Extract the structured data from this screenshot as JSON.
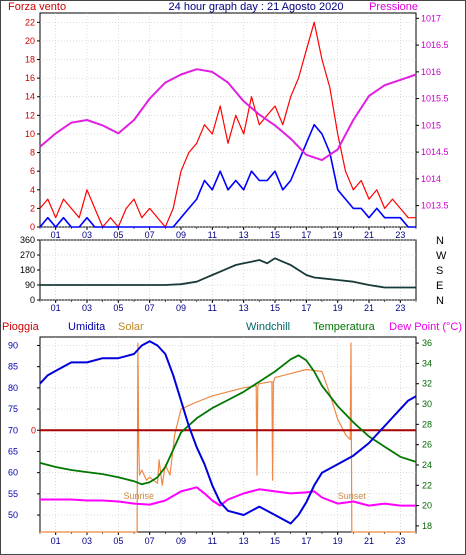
{
  "header": {
    "title": "24 hour graph day : 21 Agosto 2020",
    "left_label": "Forza vento",
    "right_label": "Pressione"
  },
  "bottom_header": {
    "labels": [
      "Pioggia",
      "Umidita",
      "Solar",
      "Windchill",
      "Temperatura",
      "Dew Point (°C)"
    ]
  },
  "colors": {
    "wind_gust": "#ff0000",
    "wind_avg": "#0000ff",
    "pressure": "#e020e0",
    "direction": "#1a3a3a",
    "humidity": "#0000dd",
    "temperature": "#007700",
    "dewpoint": "#ff00ff",
    "solar": "#ee8844",
    "rain": "#aa0000",
    "title": "#000080"
  },
  "chart_data": [
    {
      "type": "line",
      "name": "wind-pressure",
      "title": "24 hour graph day : 21 Agosto 2020",
      "x_ticks": [
        "01",
        "03",
        "05",
        "07",
        "09",
        "11",
        "13",
        "15",
        "17",
        "19",
        "21",
        "23"
      ],
      "y_left_label": "Forza vento",
      "y_left_ticks": [
        0,
        2,
        4,
        6,
        8,
        10,
        12,
        14,
        16,
        18,
        20,
        22
      ],
      "y_left_range": [
        0,
        23
      ],
      "y_right_label": "Pressione",
      "y_right_ticks": [
        1013.5,
        1014,
        1014.5,
        1015,
        1015.5,
        1016,
        1016.5,
        1017
      ],
      "y_right_range": [
        1013.1,
        1017.1
      ],
      "x_range": [
        0,
        24
      ],
      "series": [
        {
          "name": "Pressione",
          "axis": "right",
          "x": [
            0,
            1,
            2,
            3,
            4,
            5,
            6,
            7,
            8,
            9,
            10,
            11,
            12,
            13,
            14,
            15,
            16,
            17,
            18,
            19,
            20,
            21,
            22,
            23,
            24
          ],
          "y": [
            1014.6,
            1014.85,
            1015.05,
            1015.1,
            1015.0,
            1014.85,
            1015.1,
            1015.5,
            1015.8,
            1015.95,
            1016.05,
            1016.0,
            1015.8,
            1015.45,
            1015.2,
            1015.0,
            1014.75,
            1014.45,
            1014.35,
            1014.55,
            1015.1,
            1015.55,
            1015.75,
            1015.85,
            1015.95
          ]
        },
        {
          "name": "",
          "axis": "left",
          "style": "gust",
          "x": [
            0,
            0.5,
            1,
            1.5,
            2,
            2.5,
            3,
            3.5,
            4,
            4.5,
            5,
            5.5,
            6,
            6.5,
            7,
            7.5,
            8,
            8.5,
            9,
            9.5,
            10,
            10.5,
            11,
            11.5,
            12,
            12.5,
            13,
            13.5,
            14,
            14.5,
            15,
            15.5,
            16,
            16.5,
            17,
            17.5,
            18,
            18.5,
            19,
            19.5,
            20,
            20.5,
            21,
            21.5,
            22,
            22.5,
            23,
            23.5,
            24
          ],
          "y": [
            2,
            3,
            1,
            3,
            2,
            1,
            4,
            2,
            0,
            1,
            0,
            2,
            3,
            1,
            2,
            1,
            0,
            2,
            6,
            8,
            9,
            11,
            10,
            13,
            9,
            12,
            10,
            14,
            11,
            12,
            13,
            11,
            14,
            16,
            19,
            22,
            18,
            15,
            10,
            6,
            4,
            5,
            3,
            4,
            2,
            3,
            2,
            1,
            1
          ]
        },
        {
          "name": "",
          "axis": "left",
          "style": "avg",
          "x": [
            0,
            0.5,
            1,
            1.5,
            2,
            2.5,
            3,
            3.5,
            4,
            4.5,
            5,
            5.5,
            6,
            6.5,
            7,
            7.5,
            8,
            8.5,
            9,
            9.5,
            10,
            10.5,
            11,
            11.5,
            12,
            12.5,
            13,
            13.5,
            14,
            14.5,
            15,
            15.5,
            16,
            16.5,
            17,
            17.5,
            18,
            18.5,
            19,
            19.5,
            20,
            20.5,
            21,
            21.5,
            22,
            22.5,
            23,
            23.5,
            24
          ],
          "y": [
            0,
            1,
            0,
            1,
            0,
            0,
            1,
            0,
            0,
            0,
            0,
            0,
            0,
            0,
            0,
            0,
            0,
            0,
            1,
            2,
            3,
            5,
            4,
            6,
            4,
            5,
            4,
            6,
            5,
            5,
            6,
            4,
            5,
            7,
            9,
            11,
            10,
            8,
            4,
            3,
            2,
            2,
            1,
            2,
            1,
            1,
            1,
            0,
            0
          ]
        }
      ]
    },
    {
      "type": "line",
      "name": "wind-direction",
      "x_ticks": [
        "01",
        "03",
        "05",
        "07",
        "09",
        "11",
        "13",
        "15",
        "17",
        "19",
        "21",
        "23"
      ],
      "y_ticks": [
        0,
        90,
        180,
        270,
        360
      ],
      "y_range": [
        0,
        360
      ],
      "y_right_ticks": [
        "N",
        "W",
        "S",
        "E",
        "N"
      ],
      "x_range": [
        0,
        24
      ],
      "series": [
        {
          "name": "",
          "x": [
            0,
            1,
            2,
            3,
            4,
            5,
            6,
            7,
            8,
            9,
            10,
            10.5,
            11,
            11.5,
            12,
            12.5,
            13,
            13.5,
            14,
            14.5,
            15,
            15.5,
            16,
            16.5,
            17,
            17.5,
            18,
            19,
            20,
            21,
            22,
            23,
            24
          ],
          "y": [
            90,
            90,
            90,
            90,
            90,
            90,
            90,
            90,
            90,
            95,
            110,
            130,
            150,
            170,
            190,
            210,
            220,
            230,
            240,
            220,
            250,
            230,
            210,
            180,
            150,
            135,
            130,
            120,
            110,
            90,
            75,
            75,
            75
          ]
        }
      ]
    },
    {
      "type": "line",
      "name": "humidity-temperature",
      "x_ticks": [
        "01",
        "03",
        "05",
        "07",
        "09",
        "11",
        "13",
        "15",
        "17",
        "19",
        "21",
        "23"
      ],
      "y_left_ticks": [
        50,
        55,
        60,
        65,
        70,
        75,
        80,
        85,
        90
      ],
      "y_left_range": [
        46,
        92
      ],
      "y_right_ticks": [
        18,
        20,
        22,
        24,
        26,
        28,
        30,
        32,
        34,
        36
      ],
      "y_right_range": [
        17.4,
        36.6
      ],
      "rain_value_label": "0",
      "annotations": [
        "Sunrise",
        "Sunset"
      ],
      "x_range": [
        0,
        24
      ],
      "series": [
        {
          "name": "Umidita",
          "axis": "left",
          "x": [
            0,
            0.5,
            1,
            2,
            3,
            4,
            5,
            6,
            6.5,
            7,
            7.5,
            8,
            8.5,
            9,
            9.5,
            10,
            10.5,
            11,
            11.5,
            12,
            13,
            14,
            15,
            15.5,
            16,
            16.5,
            17,
            17.5,
            18,
            19,
            20,
            21,
            21.5,
            22,
            22.5,
            23,
            23.5,
            24
          ],
          "y": [
            81,
            83,
            84,
            86,
            86,
            87,
            87,
            88,
            90,
            91,
            90,
            88,
            83,
            77,
            71,
            66,
            62,
            57,
            53,
            51,
            50,
            52,
            50,
            49,
            48,
            50,
            53,
            57,
            60,
            62,
            64,
            67,
            69,
            71,
            73,
            75,
            77,
            78
          ]
        },
        {
          "name": "Temperatura",
          "axis": "right",
          "x": [
            0,
            1,
            2,
            3,
            4,
            5,
            6,
            6.5,
            7,
            7.5,
            8,
            8.5,
            9,
            10,
            11,
            12,
            13,
            14,
            15,
            15.5,
            16,
            16.5,
            17,
            17.5,
            18,
            19,
            20,
            21,
            22,
            23,
            24
          ],
          "y": [
            24.2,
            23.8,
            23.5,
            23.3,
            23.1,
            22.8,
            22.4,
            22.1,
            22.3,
            22.8,
            23.8,
            25.5,
            27.2,
            28.6,
            29.6,
            30.4,
            31.2,
            32.2,
            33.2,
            33.8,
            34.4,
            34.8,
            34.3,
            33.2,
            31.8,
            29.8,
            28.2,
            26.8,
            25.8,
            24.8,
            24.3
          ]
        },
        {
          "name": "Windchill",
          "axis": "right",
          "x": [
            0,
            24
          ],
          "y": [
            null,
            null
          ]
        },
        {
          "name": "Dew Point (°C)",
          "axis": "right",
          "x": [
            0,
            1,
            2,
            3,
            4,
            5,
            6,
            7,
            8,
            9,
            10,
            10.5,
            11,
            11.5,
            12,
            13,
            14,
            15,
            16,
            17,
            17.5,
            18,
            19,
            20,
            21,
            22,
            23,
            24
          ],
          "y": [
            20.6,
            20.6,
            20.6,
            20.5,
            20.5,
            20.4,
            20.2,
            20.1,
            20.5,
            21.4,
            21.8,
            21.2,
            20.5,
            20.0,
            20.6,
            21.2,
            21.6,
            21.4,
            21.2,
            21.3,
            21.4,
            20.8,
            20.2,
            20.4,
            20.0,
            20.2,
            20.0,
            20.0
          ]
        },
        {
          "name": "Solar",
          "axis": "right",
          "x": [
            0,
            6.2,
            6.25,
            6.3,
            6.35,
            6.5,
            6.8,
            7,
            7.5,
            7.6,
            7.8,
            8,
            8.3,
            8.6,
            9,
            10,
            11,
            12,
            13,
            13.8,
            13.85,
            13.9,
            14,
            14.8,
            14.85,
            14.9,
            15,
            16,
            17,
            18,
            18.5,
            19,
            19.5,
            19.8,
            19.85,
            19.9,
            19.95,
            20,
            24
          ],
          "y": [
            17.4,
            17.4,
            36,
            26,
            23,
            23.5,
            22.5,
            22.8,
            22.2,
            24.5,
            22,
            24,
            23,
            27,
            29.5,
            30.2,
            30.8,
            31.2,
            31.6,
            31.8,
            23,
            31.8,
            32,
            32.2,
            22.5,
            32.2,
            32.6,
            33,
            33.4,
            33.2,
            31,
            28.5,
            27,
            26.5,
            36,
            17.4,
            17.4,
            17.4,
            17.4
          ]
        },
        {
          "name": "Pioggia",
          "axis": "left",
          "x": [
            0,
            24
          ],
          "y": [
            70,
            70
          ]
        }
      ]
    }
  ]
}
